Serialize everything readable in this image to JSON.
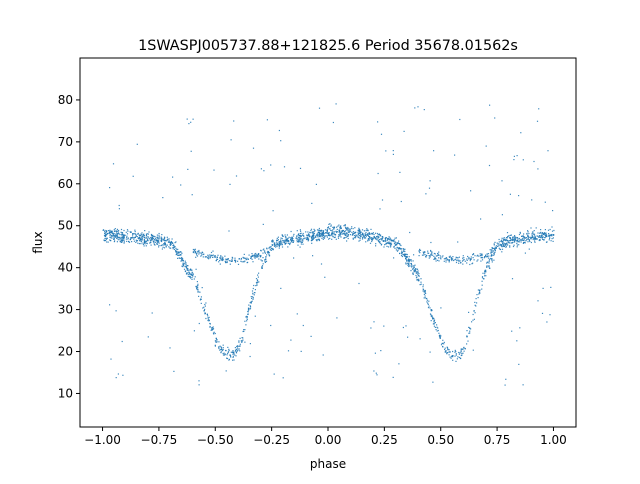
{
  "chart_data": {
    "type": "scatter",
    "title": "1SWASPJ005737.88+121825.6 Period 35678.01562s",
    "xlabel": "phase",
    "ylabel": "flux",
    "xlim": [
      -1.1,
      1.1
    ],
    "ylim": [
      2,
      90
    ],
    "xticks": [
      -1.0,
      -0.75,
      -0.5,
      -0.25,
      0.0,
      0.25,
      0.5,
      0.75,
      1.0
    ],
    "xtick_labels": [
      "−1.00",
      "−0.75",
      "−0.50",
      "−0.25",
      "0.00",
      "0.25",
      "0.50",
      "0.75",
      "1.00"
    ],
    "yticks": [
      10,
      20,
      30,
      40,
      50,
      60,
      70,
      80
    ],
    "ytick_labels": [
      "10",
      "20",
      "30",
      "40",
      "50",
      "60",
      "70",
      "80"
    ],
    "grid": false,
    "legend": "none",
    "marker_color": "#1f77b4",
    "series": [
      {
        "curve_x": [
          -1.0,
          -0.9,
          -0.8,
          -0.7,
          -0.6,
          -0.55,
          -0.5,
          -0.47,
          -0.44,
          -0.41,
          -0.38,
          -0.35,
          -0.3,
          -0.25,
          -0.2,
          -0.1,
          0.0,
          0.05,
          0.1,
          0.2,
          0.3,
          0.4,
          0.45,
          0.5,
          0.53,
          0.56,
          0.59,
          0.62,
          0.65,
          0.7,
          0.75,
          0.8,
          0.9,
          1.0
        ],
        "curve_y": [
          48,
          47.5,
          47,
          46,
          38,
          30,
          23,
          20,
          19,
          20,
          24,
          31,
          40,
          45.5,
          46.5,
          47.5,
          48.5,
          49,
          48.5,
          47.5,
          46,
          38,
          30,
          23,
          20,
          19,
          20,
          24,
          31,
          40,
          45.5,
          46.5,
          47.5,
          48
        ],
        "upper_branch_x": [
          -0.6,
          -0.5,
          -0.45,
          -0.4,
          -0.3,
          -0.25,
          0.4,
          0.5,
          0.55,
          0.6,
          0.7,
          0.75
        ],
        "upper_branch_y": [
          44,
          42.5,
          42,
          42,
          43,
          45,
          44,
          42.5,
          42,
          42,
          43,
          45
        ]
      }
    ]
  }
}
